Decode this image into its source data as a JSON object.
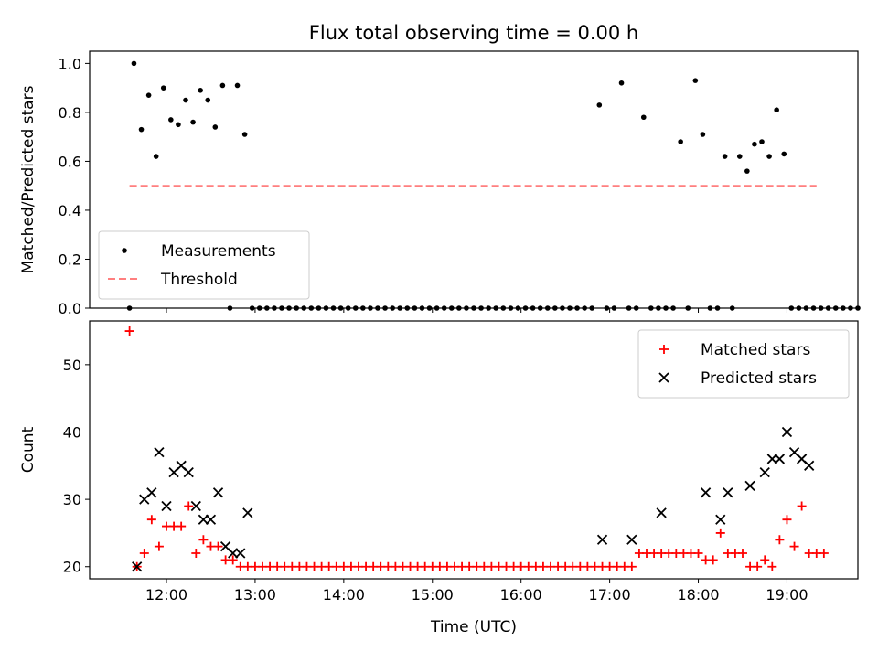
{
  "chart_data": [
    {
      "type": "scatter",
      "title": "Flux total observing time = 0.00 h",
      "xlabel": "",
      "ylabel": "Matched/Predicted stars",
      "xlim": [
        "11:08",
        "19:48"
      ],
      "ylim": [
        0,
        1.05
      ],
      "yticks": [
        "0.0",
        "0.2",
        "0.4",
        "0.6",
        "0.8",
        "1.0"
      ],
      "ytick_values": [
        0,
        0.2,
        0.4,
        0.6,
        0.8,
        1.0
      ],
      "xticks_shown_labels": false,
      "grid": false,
      "legend_position": "lower-left",
      "series": [
        {
          "name": "Measurements",
          "marker": "dot",
          "color": "#000000",
          "x": [
            "11:35",
            "11:38",
            "11:43",
            "11:48",
            "11:53",
            "11:58",
            "12:03",
            "12:08",
            "12:13",
            "12:18",
            "12:23",
            "12:28",
            "12:33",
            "12:38",
            "12:43",
            "12:48",
            "12:53",
            "12:58",
            "13:03",
            "13:08",
            "13:13",
            "13:18",
            "13:23",
            "13:28",
            "13:33",
            "13:38",
            "13:43",
            "13:48",
            "13:53",
            "13:58",
            "14:03",
            "14:08",
            "14:13",
            "14:18",
            "14:23",
            "14:28",
            "14:33",
            "14:38",
            "14:43",
            "14:48",
            "14:53",
            "14:58",
            "15:03",
            "15:08",
            "15:13",
            "15:18",
            "15:23",
            "15:28",
            "15:33",
            "15:38",
            "15:43",
            "15:48",
            "15:53",
            "15:58",
            "16:03",
            "16:08",
            "16:13",
            "16:18",
            "16:23",
            "16:28",
            "16:33",
            "16:38",
            "16:43",
            "16:48",
            "16:53",
            "16:58",
            "17:03",
            "17:08",
            "17:13",
            "17:18",
            "17:23",
            "17:28",
            "17:33",
            "17:38",
            "17:43",
            "17:48",
            "17:53",
            "17:58",
            "18:03",
            "18:08",
            "18:13",
            "18:18",
            "18:23",
            "18:28",
            "18:33",
            "18:38",
            "18:43",
            "18:48",
            "18:53",
            "18:58",
            "19:03",
            "19:08",
            "19:13",
            "19:18",
            "19:23",
            "19:28",
            "19:33",
            "19:38",
            "19:43",
            "19:48"
          ],
          "y": [
            0.0,
            1.0,
            0.73,
            0.87,
            0.62,
            0.9,
            0.77,
            0.75,
            0.85,
            0.76,
            0.89,
            0.85,
            0.74,
            0.91,
            0.0,
            0.91,
            0.71,
            0.0,
            0.0,
            0.0,
            0.0,
            0.0,
            0.0,
            0.0,
            0.0,
            0.0,
            0.0,
            0.0,
            0.0,
            0.0,
            0.0,
            0.0,
            0.0,
            0.0,
            0.0,
            0.0,
            0.0,
            0.0,
            0.0,
            0.0,
            0.0,
            0.0,
            0.0,
            0.0,
            0.0,
            0.0,
            0.0,
            0.0,
            0.0,
            0.0,
            0.0,
            0.0,
            0.0,
            0.0,
            0.0,
            0.0,
            0.0,
            0.0,
            0.0,
            0.0,
            0.0,
            0.0,
            0.0,
            0.0,
            0.83,
            0.0,
            0.0,
            0.92,
            0.0,
            0.0,
            0.78,
            0.0,
            0.0,
            0.0,
            0.0,
            0.68,
            0.0,
            0.93,
            0.71,
            0.0,
            0.0,
            0.62,
            0.0,
            0.62,
            0.56,
            0.67,
            0.68,
            0.62,
            0.81,
            0.63,
            0.0,
            0.0,
            0.0,
            0.0,
            0.0,
            0.0,
            0.0,
            0.0,
            0.0,
            0.0
          ]
        },
        {
          "name": "Threshold",
          "marker": "dashed-line",
          "color": "#ff7f7f",
          "x": [
            "11:35",
            "19:20"
          ],
          "y": [
            0.5,
            0.5
          ]
        }
      ]
    },
    {
      "type": "scatter",
      "title": "",
      "xlabel": "Time (UTC)",
      "ylabel": "Count",
      "xlim": [
        "11:08",
        "19:48"
      ],
      "ylim": [
        18.2,
        56.5
      ],
      "yticks": [
        "20",
        "30",
        "40",
        "50"
      ],
      "ytick_values": [
        20,
        30,
        40,
        50
      ],
      "xticks": [
        "12:00",
        "13:00",
        "14:00",
        "15:00",
        "16:00",
        "17:00",
        "18:00",
        "19:00"
      ],
      "grid": false,
      "legend_position": "upper-right",
      "series": [
        {
          "name": "Matched stars",
          "marker": "plus",
          "color": "#ff0000",
          "x": [
            "11:35",
            "11:40",
            "11:45",
            "11:50",
            "11:55",
            "12:00",
            "12:05",
            "12:10",
            "12:15",
            "12:20",
            "12:25",
            "12:30",
            "12:35",
            "12:40",
            "12:45",
            "12:50",
            "12:55",
            "13:00",
            "13:05",
            "13:10",
            "13:15",
            "13:20",
            "13:25",
            "13:30",
            "13:35",
            "13:40",
            "13:45",
            "13:50",
            "13:55",
            "14:00",
            "14:05",
            "14:10",
            "14:15",
            "14:20",
            "14:25",
            "14:30",
            "14:35",
            "14:40",
            "14:45",
            "14:50",
            "14:55",
            "15:00",
            "15:05",
            "15:10",
            "15:15",
            "15:20",
            "15:25",
            "15:30",
            "15:35",
            "15:40",
            "15:45",
            "15:50",
            "15:55",
            "16:00",
            "16:05",
            "16:10",
            "16:15",
            "16:20",
            "16:25",
            "16:30",
            "16:35",
            "16:40",
            "16:45",
            "16:50",
            "16:55",
            "17:00",
            "17:05",
            "17:10",
            "17:15",
            "17:20",
            "17:25",
            "17:30",
            "17:35",
            "17:40",
            "17:45",
            "17:50",
            "17:55",
            "18:00",
            "18:05",
            "18:10",
            "18:15",
            "18:20",
            "18:25",
            "18:30",
            "18:35",
            "18:40",
            "18:45",
            "18:50",
            "18:55",
            "19:00",
            "19:05",
            "19:10",
            "19:15",
            "19:20",
            "19:25"
          ],
          "y": [
            55,
            20,
            22,
            27,
            23,
            26,
            26,
            26,
            29,
            22,
            24,
            23,
            23,
            21,
            21,
            20,
            20,
            20,
            20,
            20,
            20,
            20,
            20,
            20,
            20,
            20,
            20,
            20,
            20,
            20,
            20,
            20,
            20,
            20,
            20,
            20,
            20,
            20,
            20,
            20,
            20,
            20,
            20,
            20,
            20,
            20,
            20,
            20,
            20,
            20,
            20,
            20,
            20,
            20,
            20,
            20,
            20,
            20,
            20,
            20,
            20,
            20,
            20,
            20,
            20,
            20,
            20,
            20,
            20,
            22,
            22,
            22,
            22,
            22,
            22,
            22,
            22,
            22,
            21,
            21,
            25,
            22,
            22,
            22,
            20,
            20,
            21,
            20,
            24,
            27,
            23,
            29,
            22,
            22,
            22
          ]
        },
        {
          "name": "Predicted stars",
          "marker": "x",
          "color": "#000000",
          "x": [
            "11:40",
            "11:45",
            "11:50",
            "11:55",
            "12:00",
            "12:05",
            "12:10",
            "12:15",
            "12:20",
            "12:25",
            "12:30",
            "12:35",
            "12:40",
            "12:45",
            "12:50",
            "12:55",
            "16:55",
            "17:15",
            "17:35",
            "18:05",
            "18:15",
            "18:20",
            "18:35",
            "18:45",
            "18:50",
            "18:55",
            "19:00",
            "19:05",
            "19:10",
            "19:15"
          ],
          "y": [
            20,
            30,
            31,
            37,
            29,
            34,
            35,
            34,
            29,
            27,
            27,
            31,
            23,
            22,
            22,
            28,
            24,
            24,
            28,
            31,
            27,
            31,
            32,
            34,
            36,
            36,
            40,
            37,
            36,
            35
          ]
        }
      ]
    }
  ]
}
